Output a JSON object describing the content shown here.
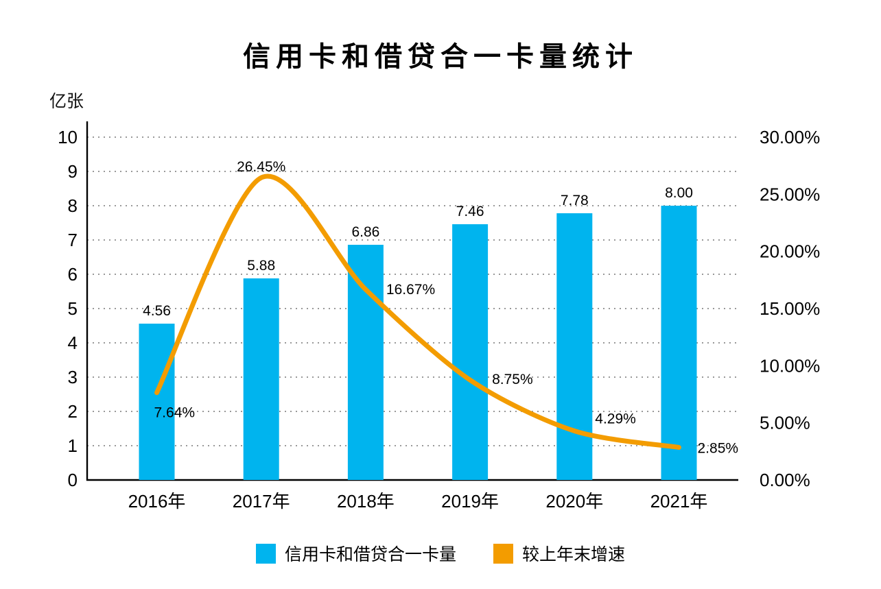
{
  "title": "信用卡和借贷合一卡量统计",
  "chart_data": {
    "type": "bar",
    "subtype": "combo-bar-line-dual-axis",
    "title": "信用卡和借贷合一卡量统计",
    "categories": [
      "2016年",
      "2017年",
      "2018年",
      "2019年",
      "2020年",
      "2021年"
    ],
    "series": [
      {
        "name": "信用卡和借贷合一卡量",
        "type": "bar",
        "axis": "left",
        "color": "#00B4EE",
        "values": [
          4.56,
          5.88,
          6.86,
          7.46,
          7.78,
          8.0
        ],
        "labels": [
          "4.56",
          "5.88",
          "6.86",
          "7.46",
          "7.78",
          "8.00"
        ]
      },
      {
        "name": "较上年末增速",
        "type": "line",
        "axis": "right",
        "color": "#F39C00",
        "values": [
          7.64,
          26.45,
          16.67,
          8.75,
          4.29,
          2.85
        ],
        "labels": [
          "7.64%",
          "26.45%",
          "16.67%",
          "8.75%",
          "4.29%",
          "2.85%"
        ]
      }
    ],
    "left_axis": {
      "unit": "亿张",
      "min": 0,
      "max": 10,
      "tick_step": 1,
      "ticks": [
        "0",
        "1",
        "2",
        "3",
        "4",
        "5",
        "6",
        "7",
        "8",
        "9",
        "10"
      ]
    },
    "right_axis": {
      "min": 0,
      "max": 30,
      "tick_step": 5,
      "ticks": [
        "0.00%",
        "5.00%",
        "10.00%",
        "15.00%",
        "20.00%",
        "25.00%",
        "30.00%"
      ]
    },
    "grid": "dotted horizontal gridlines at each left-axis integer",
    "legend_position": "bottom",
    "colors": {
      "bar_blue": "#00B4EE",
      "line_orange": "#F39C00",
      "axis_black": "#000000",
      "grid_gray": "#8a8a8a"
    }
  }
}
